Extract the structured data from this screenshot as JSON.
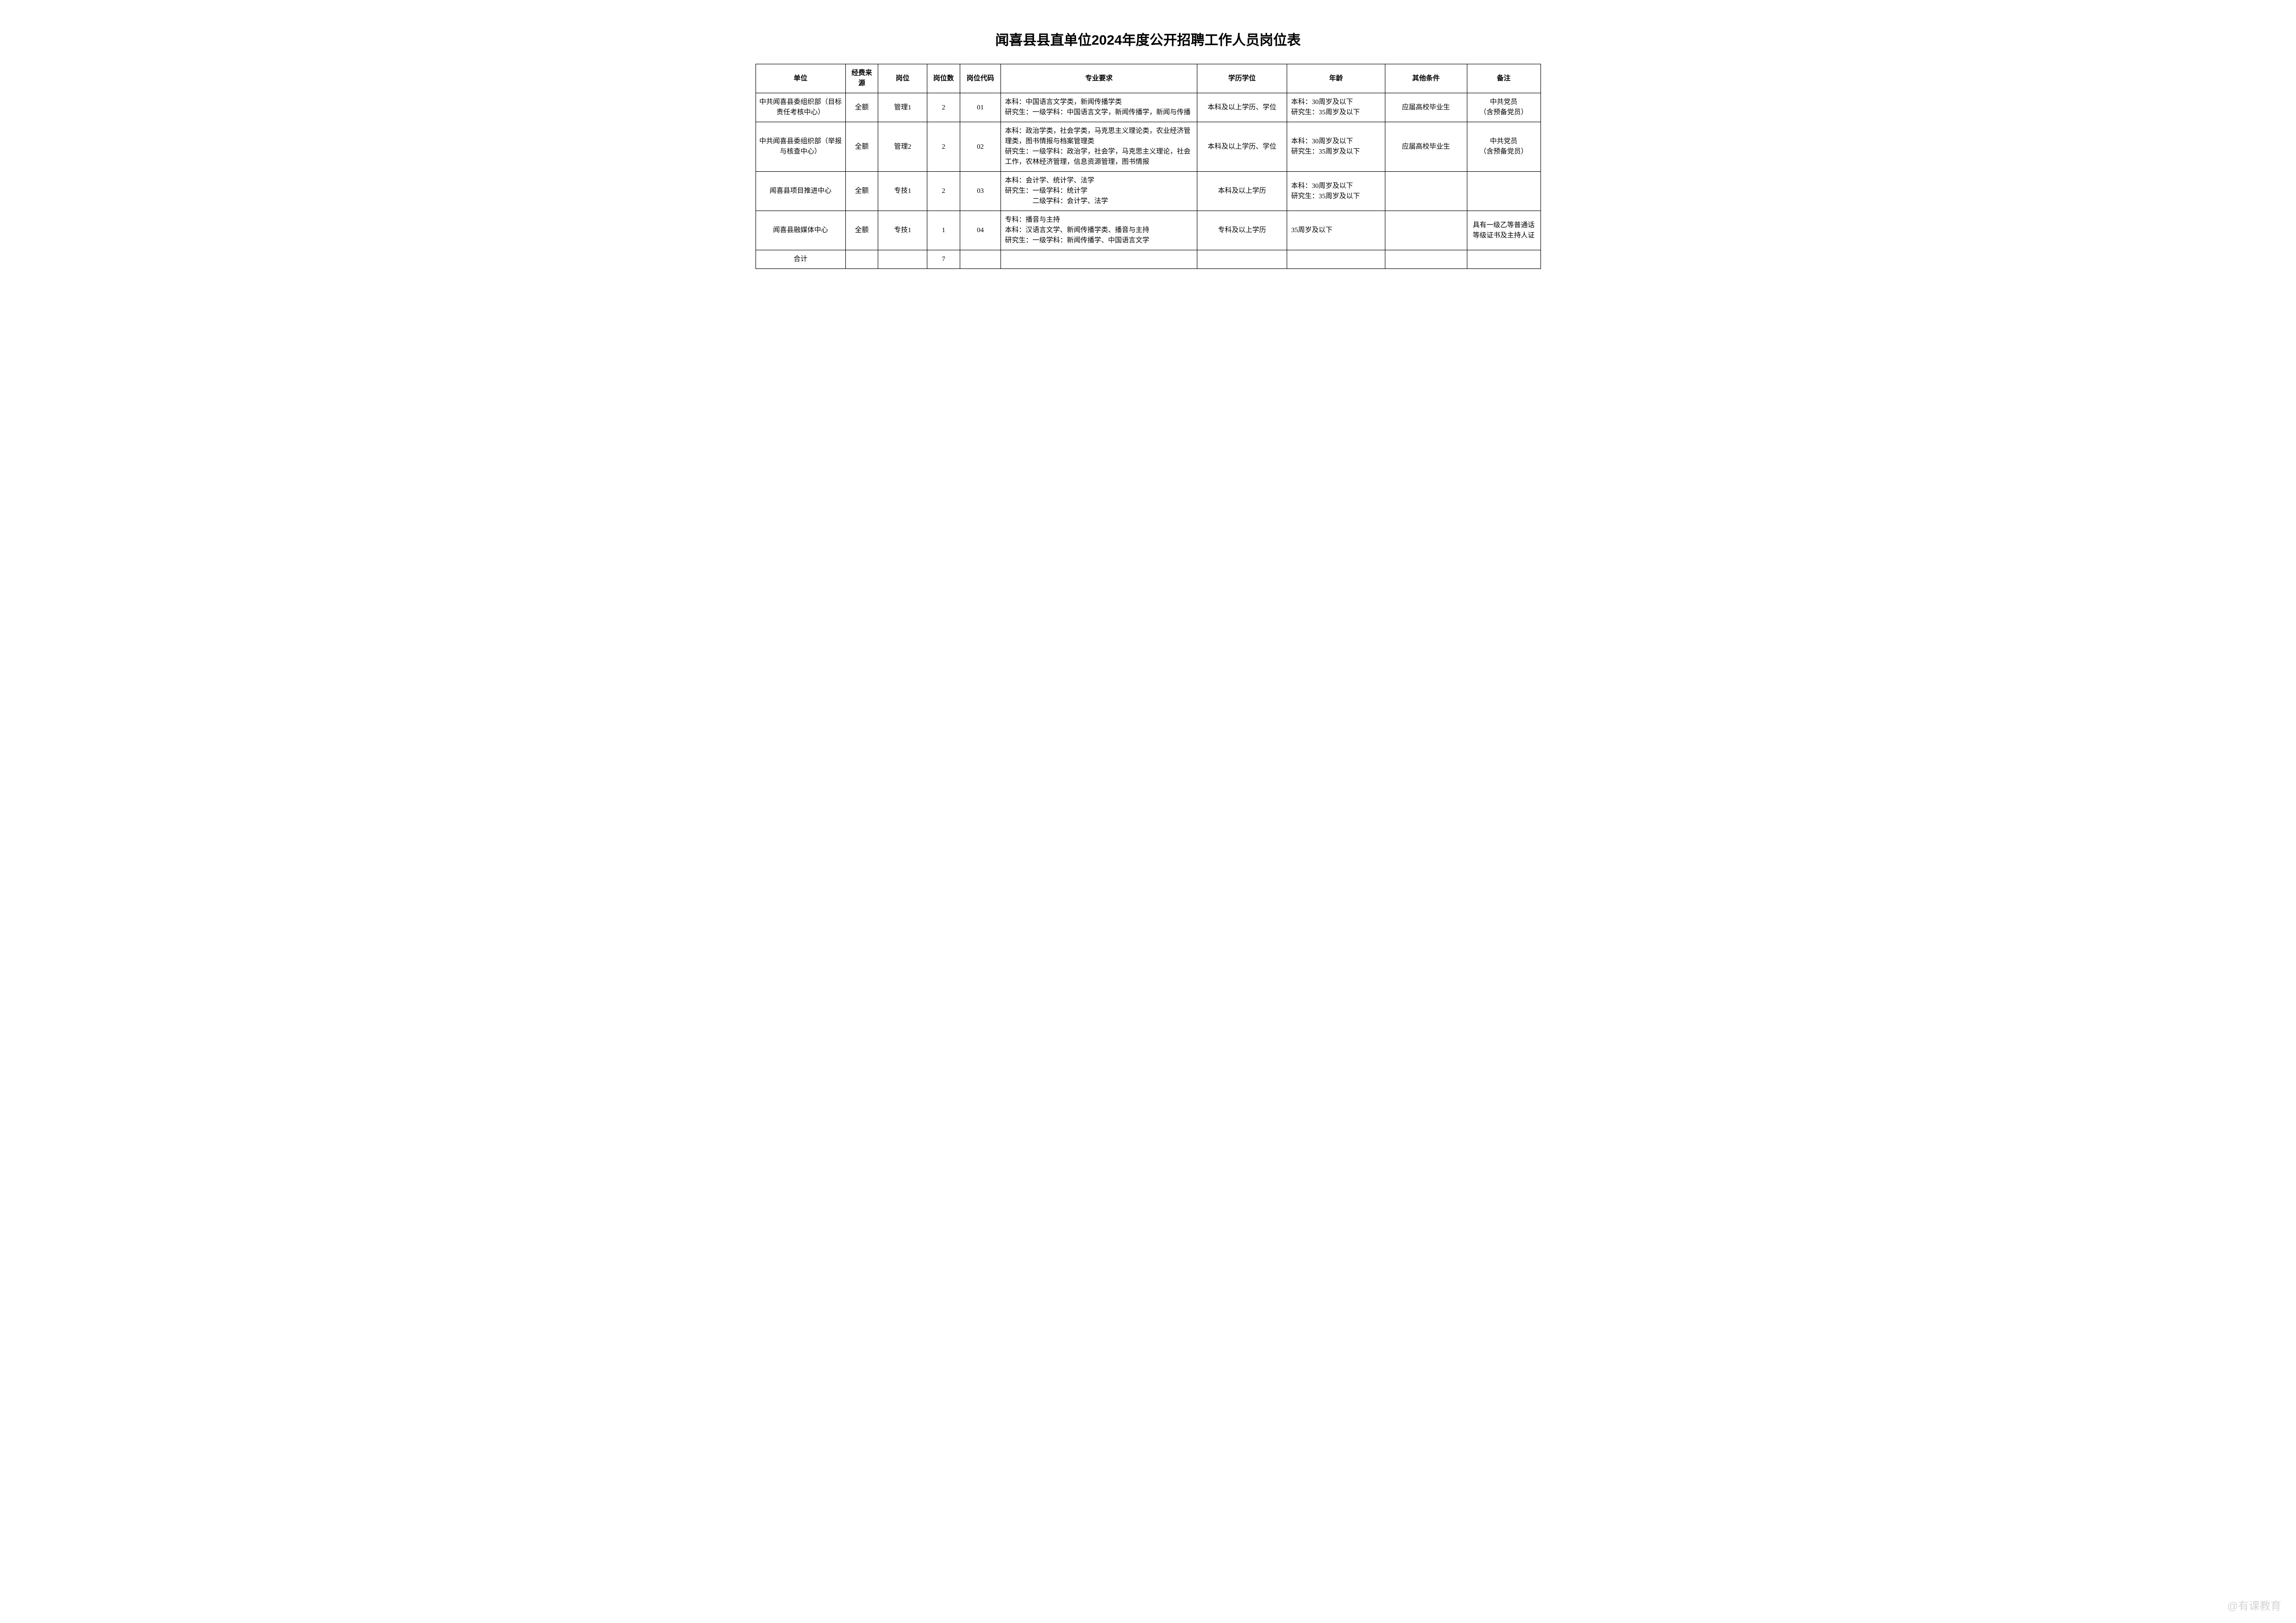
{
  "title": "闻喜县县直单位2024年度公开招聘工作人员岗位表",
  "headers": {
    "unit": "单位",
    "fund": "经费来源",
    "post": "岗位",
    "count": "岗位数",
    "code": "岗位代码",
    "major": "专业要求",
    "edu": "学历学位",
    "age": "年龄",
    "other": "其他条件",
    "remark": "备注"
  },
  "rows": [
    {
      "unit": "中共闻喜县委组织部（目标责任考核中心）",
      "fund": "全额",
      "post": "管理1",
      "count": "2",
      "code": "01",
      "major": "本科：中国语言文学类，新闻传播学类\n研究生：一级学科：中国语言文学，新闻传播学，新闻与传播",
      "edu": "本科及以上学历、学位",
      "age": "本科：30周岁及以下\n研究生：35周岁及以下",
      "other": "应届高校毕业生",
      "remark": "中共党员\n（含预备党员）"
    },
    {
      "unit": "中共闻喜县委组织部（举报与核查中心）",
      "fund": "全额",
      "post": "管理2",
      "count": "2",
      "code": "02",
      "major": "本科：政治学类，社会学类，马克思主义理论类，农业经济管理类，图书情报与档案管理类\n研究生：一级学科：政治学，社会学，马克思主义理论，社会工作，农林经济管理，信息资源管理，图书情报",
      "edu": "本科及以上学历、学位",
      "age": "本科：30周岁及以下\n研究生：35周岁及以下",
      "other": "应届高校毕业生",
      "remark": "中共党员\n（含预备党员）"
    },
    {
      "unit": "闻喜县项目推进中心",
      "fund": "全额",
      "post": "专技1",
      "count": "2",
      "code": "03",
      "major": "本科：会计学、统计学、法学\n研究生：一级学科：统计学\n　　　　二级学科：会计学、法学",
      "edu": "本科及以上学历",
      "age": "本科：30周岁及以下\n研究生：35周岁及以下",
      "other": "",
      "remark": ""
    },
    {
      "unit": "闻喜县融媒体中心",
      "fund": "全额",
      "post": "专技1",
      "count": "1",
      "code": "04",
      "major": "专科：播音与主持\n本科：汉语言文学、新闻传播学类、播音与主持\n研究生：一级学科：新闻传播学、中国语言文学",
      "edu": "专科及以上学历",
      "age": "35周岁及以下",
      "other": "",
      "remark": "具有一级乙等普通话等级证书及主持人证"
    }
  ],
  "total": {
    "label": "合计",
    "count": "7"
  },
  "watermark": "@有课教育",
  "styling": {
    "title_fontsize": 28,
    "cell_fontsize": 14,
    "border_color": "#000000",
    "background_color": "#ffffff",
    "text_color": "#000000",
    "watermark_color": "rgba(150,150,150,0.4)"
  }
}
